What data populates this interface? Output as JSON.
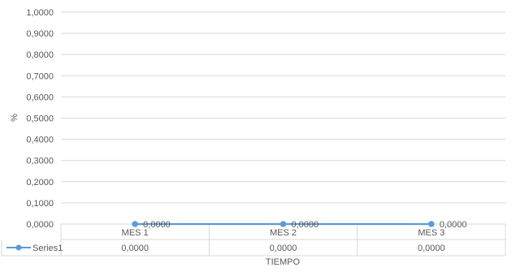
{
  "chart_data": {
    "type": "line",
    "title": "",
    "xlabel": "TIEMPO",
    "ylabel": "%",
    "categories": [
      "MES 1",
      "MES 2",
      "MES 3"
    ],
    "series": [
      {
        "name": "Series1",
        "values": [
          0,
          0,
          0
        ],
        "value_labels": [
          "0,0000",
          "0,0000",
          "0,0000"
        ],
        "color": "#5b9bd5"
      }
    ],
    "ylim": [
      0,
      1
    ],
    "y_ticks": [
      "0,0000",
      "0,1000",
      "0,2000",
      "0,3000",
      "0,4000",
      "0,5000",
      "0,6000",
      "0,7000",
      "0,8000",
      "0,9000",
      "1,0000"
    ],
    "grid": true,
    "legend": "data-table",
    "data_table": true,
    "colors": {
      "gridline": "#d9d9d9",
      "text": "#595959",
      "series": "#5b9bd5"
    }
  }
}
